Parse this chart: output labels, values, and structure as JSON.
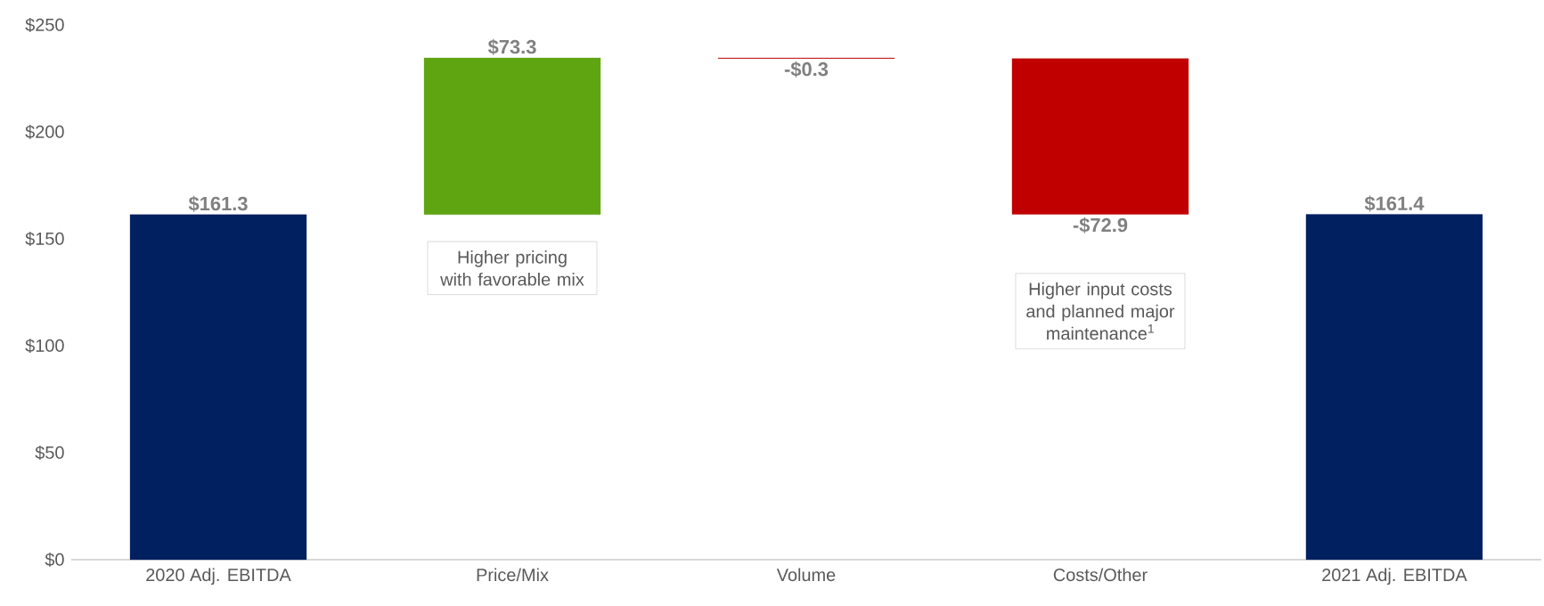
{
  "chart_data": {
    "type": "bar",
    "categories": [
      "2020 Adj. EBITDA",
      "Price/Mix",
      "Volume",
      "Costs/Other",
      "2021 Adj. EBITDA"
    ],
    "values": [
      161.3,
      73.3,
      -0.3,
      -72.9,
      161.4
    ],
    "base": [
      0,
      161.3,
      234.6,
      234.3,
      0
    ],
    "colors": [
      "#002060",
      "#5fa511",
      "#c00000",
      "#c00000",
      "#002060"
    ],
    "value_labels": [
      "$161.3",
      "$73.3",
      "-$0.3",
      "-$72.9",
      "$161.4"
    ],
    "ylim": [
      0,
      250
    ],
    "yticks": [
      {
        "value": 0,
        "label": "$0"
      },
      {
        "value": 50,
        "label": "$50"
      },
      {
        "value": 100,
        "label": "$100"
      },
      {
        "value": 150,
        "label": "$150"
      },
      {
        "value": 200,
        "label": "$200"
      },
      {
        "value": 250,
        "label": "$250"
      }
    ],
    "grid": false,
    "annotations": [
      "Higher pricing with favorable mix",
      "Higher input costs and planned major maintenance$^{1}$"
    ]
  }
}
